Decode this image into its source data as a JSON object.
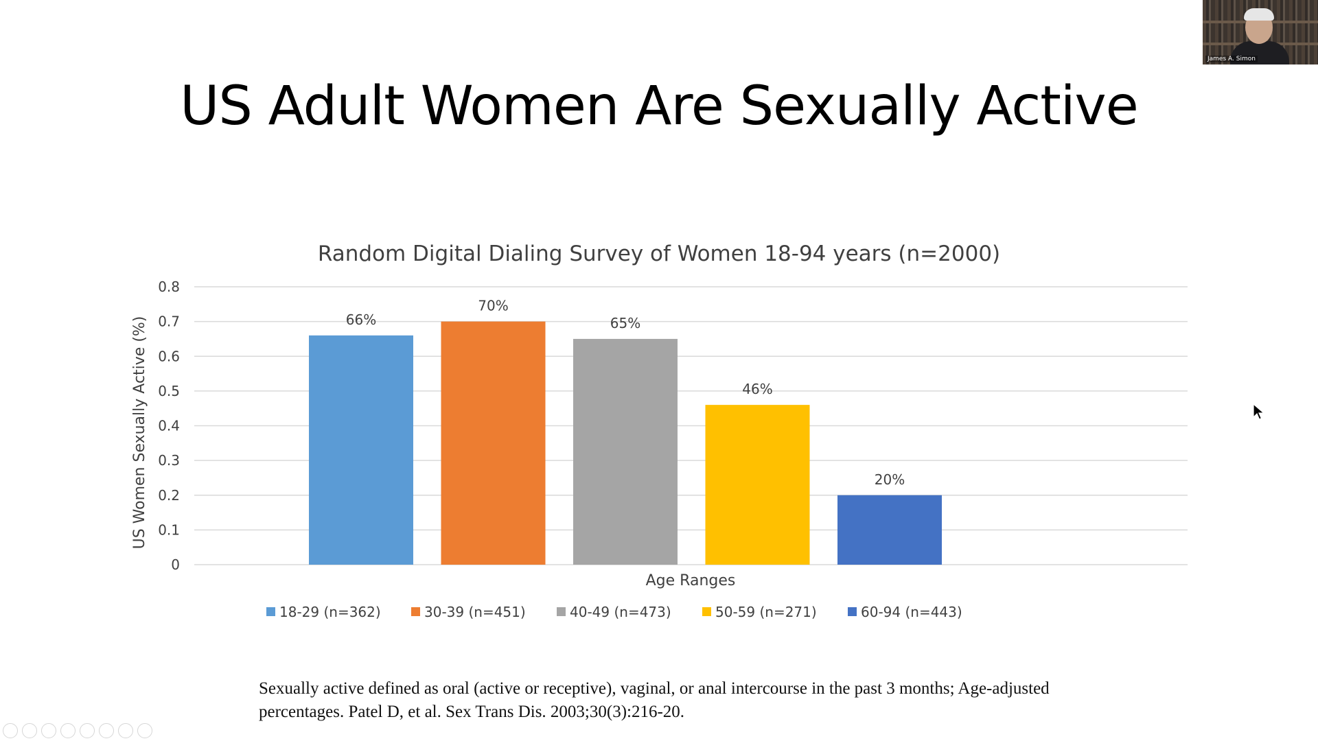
{
  "slide": {
    "title": "US Adult Women Are Sexually Active",
    "footnote": "Sexually active defined as oral (active or receptive), vaginal, or anal intercourse in the past 3 months; Age-adjusted percentages. Patel D, et al. Sex Trans Dis. 2003;30(3):216-20."
  },
  "webcam": {
    "name_tag": "James A. Simon"
  },
  "toolbar": {
    "icons": [
      "previous-icon",
      "pointer-icon",
      "pen-icon",
      "slides-icon",
      "zoom-icon",
      "subtitles-icon",
      "camera-icon",
      "more-icon"
    ]
  },
  "chart_data": {
    "type": "bar",
    "title": "Random  Digital Dialing Survey of Women 18-94 years (n=2000)",
    "xlabel": "Age Ranges",
    "ylabel": "US Women Sexually Active (%)",
    "ylim": [
      0,
      0.8
    ],
    "yticks": [
      "0",
      "0.1",
      "0.2",
      "0.3",
      "0.4",
      "0.5",
      "0.6",
      "0.7",
      "0.8"
    ],
    "grid": true,
    "legend_position": "bottom",
    "series": [
      {
        "name": "18-29 (n=362)",
        "value": 0.66,
        "label": "66%",
        "color": "#5B9BD5"
      },
      {
        "name": "30-39 (n=451)",
        "value": 0.7,
        "label": "70%",
        "color": "#ED7D31"
      },
      {
        "name": "40-49 (n=473)",
        "value": 0.65,
        "label": "65%",
        "color": "#A5A5A5"
      },
      {
        "name": "50-59 (n=271)",
        "value": 0.46,
        "label": "46%",
        "color": "#FFC000"
      },
      {
        "name": "60-94 (n=443)",
        "value": 0.2,
        "label": "20%",
        "color": "#4472C4"
      }
    ]
  }
}
